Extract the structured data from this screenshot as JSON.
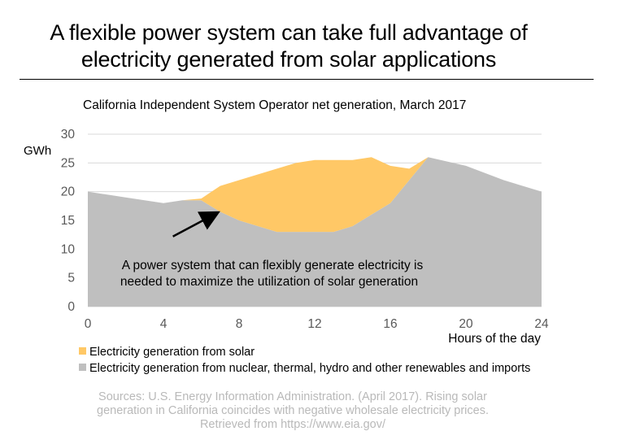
{
  "title_lines": [
    "A flexible power system can take full advantage of",
    "electricity generated from solar applications"
  ],
  "chart_data": {
    "type": "area",
    "title": "California Independent System Operator net generation, March 2017",
    "xlabel": "Hours of the day",
    "ylabel": "GWh",
    "xlim": [
      0,
      24
    ],
    "ylim": [
      0,
      30
    ],
    "xticks": [
      0,
      4,
      8,
      12,
      16,
      20,
      24
    ],
    "yticks": [
      0,
      5,
      10,
      15,
      20,
      25,
      30
    ],
    "grid": true,
    "stacked": true,
    "x": [
      0,
      2,
      4,
      5,
      6,
      7,
      8,
      10,
      11,
      12,
      13,
      14,
      15,
      16,
      17,
      18,
      20,
      22,
      24
    ],
    "series": [
      {
        "name": "Electricity generation from nuclear, thermal, hydro and other renewables and imports",
        "color": "#bfbfbf",
        "values": [
          20,
          19,
          18,
          18.5,
          18.5,
          16.5,
          15,
          13,
          13,
          13,
          13,
          14,
          16,
          18,
          22,
          26,
          24.5,
          22,
          20
        ]
      },
      {
        "name": "Electricity generation from solar",
        "color": "#ffc866",
        "values": [
          0,
          0,
          0,
          0,
          0.3,
          4.5,
          7,
          11,
          12,
          12.5,
          12.5,
          11.5,
          10,
          6.5,
          2,
          0,
          0,
          0,
          0
        ]
      }
    ],
    "annotation": {
      "lines": [
        "A power system that can flexibly generate electricity is",
        "needed to maximize the utilization of solar generation"
      ],
      "arrow_to": [
        6.8,
        16.5
      ],
      "arrow_from": [
        4.5,
        12.2
      ]
    },
    "legend_position": "bottom-left"
  },
  "legend": [
    {
      "label": "Electricity generation from solar",
      "color": "#ffc866"
    },
    {
      "label": "Electricity generation from nuclear, thermal, hydro and other renewables and imports",
      "color": "#bfbfbf"
    }
  ],
  "source_lines": [
    "Sources: U.S. Energy Information Administration. (April 2017). Rising solar",
    "generation in California coincides with negative wholesale electricity prices.",
    "Retrieved from https://www.eia.gov/"
  ]
}
